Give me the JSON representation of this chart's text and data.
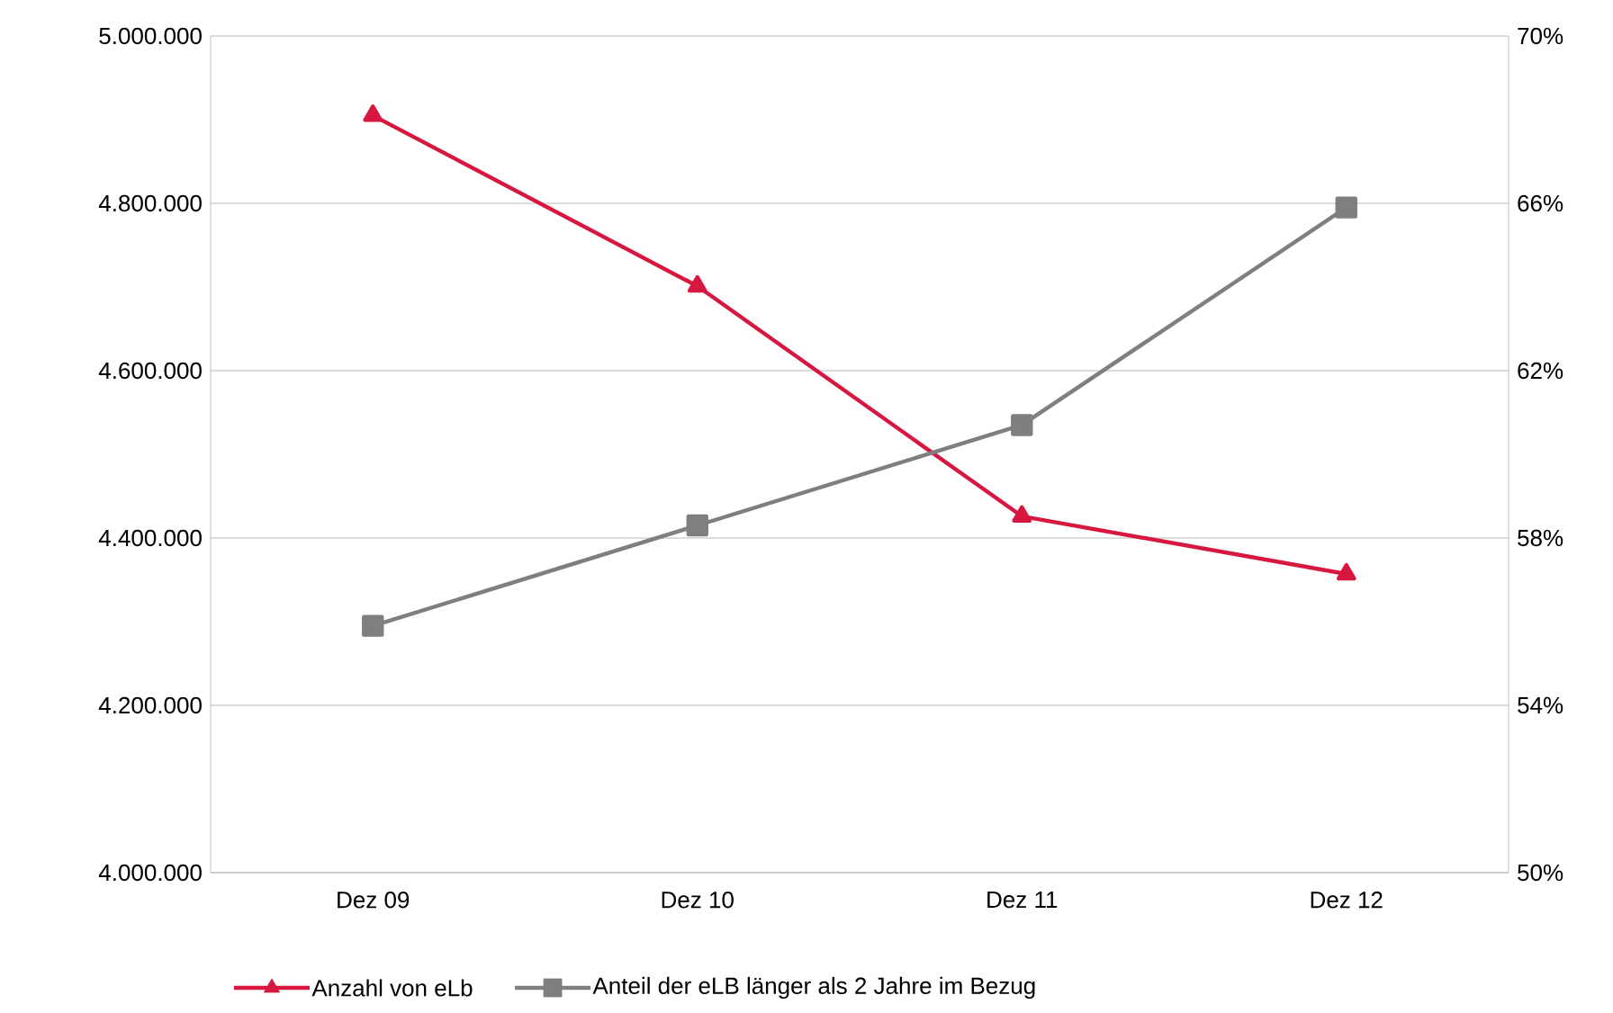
{
  "chart_data": {
    "type": "line",
    "categories": [
      "Dez 09",
      "Dez 10",
      "Dez 11",
      "Dez 12"
    ],
    "series": [
      {
        "name": "Anzahl von eLb",
        "color": "#d7173f",
        "marker": "triangle",
        "values": [
          4905000,
          4701000,
          4426000,
          4357000
        ]
      },
      {
        "name": "Anteil der eLB länger als 2 Jahre im Bezug",
        "color": "#7f7f7f",
        "marker": "square",
        "axis": "y2",
        "values": [
          55.9,
          58.3,
          60.7,
          65.9
        ]
      }
    ],
    "ylim": [
      4000000,
      5000000
    ],
    "yticks": [
      {
        "value": 4000000,
        "label": "4.000.000"
      },
      {
        "value": 4200000,
        "label": "4.200.000"
      },
      {
        "value": 4400000,
        "label": "4.400.000"
      },
      {
        "value": 4600000,
        "label": "4.600.000"
      },
      {
        "value": 4800000,
        "label": "4.800.000"
      },
      {
        "value": 5000000,
        "label": "5.000.000"
      }
    ],
    "y2lim": [
      50,
      70
    ],
    "y2ticks": [
      {
        "value": 50,
        "label": "50%"
      },
      {
        "value": 54,
        "label": "54%"
      },
      {
        "value": 58,
        "label": "58%"
      },
      {
        "value": 62,
        "label": "62%"
      },
      {
        "value": 66,
        "label": "66%"
      },
      {
        "value": 70,
        "label": "70%"
      }
    ],
    "grid": "y",
    "legend": "bottom",
    "line_style": "solid"
  }
}
